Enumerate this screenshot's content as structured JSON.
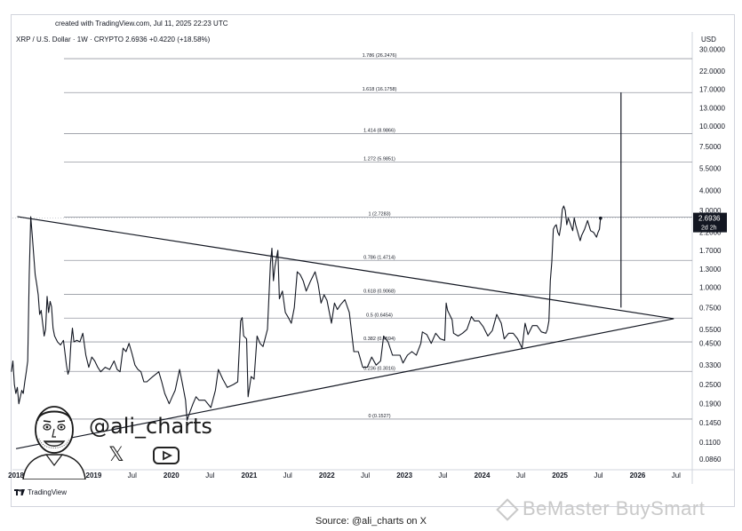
{
  "header": {
    "created": "created with TradingView.com, Jul 11, 2025 22:23 UTC",
    "symbol": "XRP / U.S. Dollar · 1W · CRYPTO  2.6936  +0.4220  (+18.58%)",
    "currency": "USD"
  },
  "price_badge": {
    "value": "2.6936",
    "countdown": "2d 2h"
  },
  "author": {
    "handle": "@ali_charts"
  },
  "footer": {
    "brand": "TradingView",
    "source": "Source: @ali_charts on X"
  },
  "watermark": "BeMaster BuySmart",
  "icons": [
    "tradingview-logo-icon",
    "x-logo-icon",
    "youtube-icon",
    "bemaster-logo-icon"
  ],
  "colors": {
    "line": "#131722",
    "grid": "#b2b5be",
    "badge": "#131722",
    "background": "#ffffff"
  },
  "chart_data": {
    "type": "line",
    "title": "",
    "scale": "log",
    "ylabel": "USD",
    "ylim": [
      0.075,
      33
    ],
    "xlim": [
      "2017-12-15",
      "2026-09-15"
    ],
    "y_ticks": [
      "30.0000",
      "22.0000",
      "17.0000",
      "13.0000",
      "10.0000",
      "7.5000",
      "5.5000",
      "4.0000",
      "3.0000",
      "2.2000",
      "1.7000",
      "1.3000",
      "1.0000",
      "0.7500",
      "0.5500",
      "0.4500",
      "0.3300",
      "0.2500",
      "0.1900",
      "0.1450",
      "0.1100",
      "0.0860"
    ],
    "x_ticks": [
      {
        "label": "2018",
        "date": "2018-01-01"
      },
      {
        "label": "Jul",
        "date": "2018-07-01"
      },
      {
        "label": "2019",
        "date": "2019-01-01"
      },
      {
        "label": "Jul",
        "date": "2019-07-01"
      },
      {
        "label": "2020",
        "date": "2020-01-01"
      },
      {
        "label": "Jul",
        "date": "2020-07-01"
      },
      {
        "label": "2021",
        "date": "2021-01-01"
      },
      {
        "label": "Jul",
        "date": "2021-07-01"
      },
      {
        "label": "2022",
        "date": "2022-01-01"
      },
      {
        "label": "Jul",
        "date": "2022-07-01"
      },
      {
        "label": "2023",
        "date": "2023-01-01"
      },
      {
        "label": "Jul",
        "date": "2023-07-01"
      },
      {
        "label": "2024",
        "date": "2024-01-01"
      },
      {
        "label": "Jul",
        "date": "2024-07-01"
      },
      {
        "label": "2025",
        "date": "2025-01-01"
      },
      {
        "label": "Jul",
        "date": "2025-07-01"
      },
      {
        "label": "2026",
        "date": "2026-01-01"
      },
      {
        "label": "Jul",
        "date": "2026-07-01"
      }
    ],
    "fib_levels": [
      {
        "label": "1.786 (26.2476)",
        "value": 26.2476
      },
      {
        "label": "1.618 (16.1758)",
        "value": 16.1758
      },
      {
        "label": "1.414 (8.9866)",
        "value": 8.9866
      },
      {
        "label": "1.272 (5.9851)",
        "value": 5.9851
      },
      {
        "label": "1 (2.7283)",
        "value": 2.7283
      },
      {
        "label": "0.786 (1.4714)",
        "value": 1.4714
      },
      {
        "label": "0.618 (0.9068)",
        "value": 0.9068
      },
      {
        "label": "0.5 (0.6454)",
        "value": 0.6454
      },
      {
        "label": "0.382 (0.4594)",
        "value": 0.4594
      },
      {
        "label": "0.236 (0.3016)",
        "value": 0.3016
      },
      {
        "label": "0 (0.1527)",
        "value": 0.1527
      }
    ],
    "triangle": {
      "upper": [
        [
          "2018-01-07",
          2.75
        ],
        [
          "2026-06-20",
          0.64
        ]
      ],
      "lower": [
        [
          "2018-01-01",
          0.1
        ],
        [
          "2026-06-20",
          0.64
        ]
      ]
    },
    "projection": {
      "x": "2025-10-15",
      "from": 0.75,
      "to": 16.2
    },
    "series": [
      {
        "values": [
          [
            "2017-12-10",
            0.3
          ],
          [
            "2017-12-17",
            0.35
          ],
          [
            "2017-12-24",
            0.25
          ],
          [
            "2017-12-31",
            0.22
          ],
          [
            "2018-01-07",
            0.24
          ],
          [
            "2018-01-14",
            0.19
          ],
          [
            "2018-01-21",
            0.21
          ],
          [
            "2018-01-28",
            0.23
          ],
          [
            "2018-02-04",
            0.22
          ],
          [
            "2018-02-11",
            0.26
          ],
          [
            "2018-02-18",
            0.3
          ],
          [
            "2018-02-25",
            0.35
          ],
          [
            "2018-03-04",
            1.2
          ],
          [
            "2018-03-11",
            2.75
          ],
          [
            "2018-03-18",
            2.1
          ],
          [
            "2018-03-25",
            1.6
          ],
          [
            "2018-04-01",
            1.2
          ],
          [
            "2018-04-08",
            1.05
          ],
          [
            "2018-04-15",
            0.9
          ],
          [
            "2018-04-22",
            0.68
          ],
          [
            "2018-04-29",
            0.72
          ],
          [
            "2018-05-06",
            0.6
          ],
          [
            "2018-05-13",
            0.5
          ],
          [
            "2018-05-20",
            0.55
          ],
          [
            "2018-05-27",
            0.88
          ],
          [
            "2018-06-03",
            0.7
          ],
          [
            "2018-06-10",
            0.82
          ],
          [
            "2018-06-17",
            0.76
          ],
          [
            "2018-06-24",
            0.56
          ],
          [
            "2018-07-01",
            0.5
          ],
          [
            "2018-07-15",
            0.46
          ],
          [
            "2018-07-29",
            0.44
          ],
          [
            "2018-08-12",
            0.47
          ],
          [
            "2018-08-26",
            0.33
          ],
          [
            "2018-09-02",
            0.29
          ],
          [
            "2018-09-09",
            0.31
          ],
          [
            "2018-09-16",
            0.45
          ],
          [
            "2018-09-23",
            0.56
          ],
          [
            "2018-09-30",
            0.46
          ],
          [
            "2018-10-14",
            0.47
          ],
          [
            "2018-10-28",
            0.46
          ],
          [
            "2018-11-11",
            0.52
          ],
          [
            "2018-11-25",
            0.38
          ],
          [
            "2018-12-09",
            0.32
          ],
          [
            "2018-12-23",
            0.37
          ],
          [
            "2019-01-06",
            0.35
          ],
          [
            "2019-01-20",
            0.32
          ],
          [
            "2019-02-03",
            0.3
          ],
          [
            "2019-02-24",
            0.32
          ],
          [
            "2019-03-17",
            0.31
          ],
          [
            "2019-04-07",
            0.35
          ],
          [
            "2019-04-21",
            0.31
          ],
          [
            "2019-05-05",
            0.3
          ],
          [
            "2019-05-19",
            0.42
          ],
          [
            "2019-06-02",
            0.4
          ],
          [
            "2019-06-16",
            0.45
          ],
          [
            "2019-06-30",
            0.39
          ],
          [
            "2019-07-14",
            0.33
          ],
          [
            "2019-07-28",
            0.31
          ],
          [
            "2019-08-11",
            0.3
          ],
          [
            "2019-08-25",
            0.26
          ],
          [
            "2019-09-08",
            0.26
          ],
          [
            "2019-09-22",
            0.27
          ],
          [
            "2019-10-06",
            0.28
          ],
          [
            "2019-10-20",
            0.29
          ],
          [
            "2019-11-03",
            0.3
          ],
          [
            "2019-11-17",
            0.26
          ],
          [
            "2019-12-01",
            0.22
          ],
          [
            "2019-12-22",
            0.19
          ],
          [
            "2020-01-05",
            0.21
          ],
          [
            "2020-01-19",
            0.23
          ],
          [
            "2020-02-09",
            0.31
          ],
          [
            "2020-02-23",
            0.25
          ],
          [
            "2020-03-08",
            0.2
          ],
          [
            "2020-03-15",
            0.15
          ],
          [
            "2020-03-29",
            0.17
          ],
          [
            "2020-04-12",
            0.19
          ],
          [
            "2020-04-26",
            0.21
          ],
          [
            "2020-05-10",
            0.2
          ],
          [
            "2020-06-07",
            0.2
          ],
          [
            "2020-07-05",
            0.18
          ],
          [
            "2020-07-26",
            0.23
          ],
          [
            "2020-08-09",
            0.31
          ],
          [
            "2020-08-30",
            0.27
          ],
          [
            "2020-09-20",
            0.24
          ],
          [
            "2020-10-18",
            0.25
          ],
          [
            "2020-11-08",
            0.26
          ],
          [
            "2020-11-22",
            0.62
          ],
          [
            "2020-11-29",
            0.65
          ],
          [
            "2020-12-06",
            0.5
          ],
          [
            "2020-12-20",
            0.48
          ],
          [
            "2020-12-27",
            0.21
          ],
          [
            "2021-01-10",
            0.28
          ],
          [
            "2021-01-24",
            0.27
          ],
          [
            "2021-02-07",
            0.5
          ],
          [
            "2021-02-21",
            0.45
          ],
          [
            "2021-03-07",
            0.43
          ],
          [
            "2021-03-28",
            0.55
          ],
          [
            "2021-04-11",
            1.4
          ],
          [
            "2021-04-18",
            1.75
          ],
          [
            "2021-04-25",
            1.1
          ],
          [
            "2021-05-02",
            1.35
          ],
          [
            "2021-05-16",
            1.7
          ],
          [
            "2021-05-23",
            0.85
          ],
          [
            "2021-06-06",
            0.95
          ],
          [
            "2021-06-20",
            0.7
          ],
          [
            "2021-07-04",
            0.65
          ],
          [
            "2021-07-18",
            0.6
          ],
          [
            "2021-08-01",
            0.75
          ],
          [
            "2021-08-15",
            1.25
          ],
          [
            "2021-08-29",
            1.2
          ],
          [
            "2021-09-12",
            1.1
          ],
          [
            "2021-09-26",
            0.95
          ],
          [
            "2021-10-17",
            1.1
          ],
          [
            "2021-11-07",
            1.25
          ],
          [
            "2021-11-21",
            1.05
          ],
          [
            "2021-12-05",
            0.8
          ],
          [
            "2021-12-19",
            0.9
          ],
          [
            "2022-01-02",
            0.83
          ],
          [
            "2022-01-23",
            0.6
          ],
          [
            "2022-02-06",
            0.8
          ],
          [
            "2022-02-20",
            0.73
          ],
          [
            "2022-03-06",
            0.78
          ],
          [
            "2022-03-27",
            0.84
          ],
          [
            "2022-04-17",
            0.7
          ],
          [
            "2022-05-08",
            0.4
          ],
          [
            "2022-05-29",
            0.4
          ],
          [
            "2022-06-19",
            0.32
          ],
          [
            "2022-07-10",
            0.32
          ],
          [
            "2022-07-31",
            0.37
          ],
          [
            "2022-08-21",
            0.33
          ],
          [
            "2022-09-11",
            0.35
          ],
          [
            "2022-09-25",
            0.5
          ],
          [
            "2022-10-16",
            0.46
          ],
          [
            "2022-11-06",
            0.38
          ],
          [
            "2022-11-20",
            0.38
          ],
          [
            "2022-12-11",
            0.38
          ],
          [
            "2022-12-25",
            0.34
          ],
          [
            "2023-01-15",
            0.38
          ],
          [
            "2023-02-05",
            0.4
          ],
          [
            "2023-02-26",
            0.38
          ],
          [
            "2023-03-19",
            0.45
          ],
          [
            "2023-03-26",
            0.53
          ],
          [
            "2023-04-16",
            0.51
          ],
          [
            "2023-05-07",
            0.45
          ],
          [
            "2023-05-28",
            0.52
          ],
          [
            "2023-06-18",
            0.48
          ],
          [
            "2023-07-09",
            0.47
          ],
          [
            "2023-07-16",
            0.8
          ],
          [
            "2023-07-23",
            0.72
          ],
          [
            "2023-08-13",
            0.63
          ],
          [
            "2023-08-20",
            0.52
          ],
          [
            "2023-09-10",
            0.5
          ],
          [
            "2023-10-01",
            0.52
          ],
          [
            "2023-10-22",
            0.55
          ],
          [
            "2023-11-12",
            0.66
          ],
          [
            "2023-11-26",
            0.62
          ],
          [
            "2023-12-17",
            0.62
          ],
          [
            "2024-01-07",
            0.57
          ],
          [
            "2024-01-28",
            0.5
          ],
          [
            "2024-02-18",
            0.54
          ],
          [
            "2024-03-10",
            0.68
          ],
          [
            "2024-03-31",
            0.6
          ],
          [
            "2024-04-14",
            0.48
          ],
          [
            "2024-05-05",
            0.52
          ],
          [
            "2024-05-26",
            0.52
          ],
          [
            "2024-06-16",
            0.48
          ],
          [
            "2024-07-07",
            0.42
          ],
          [
            "2024-07-21",
            0.6
          ],
          [
            "2024-08-04",
            0.51
          ],
          [
            "2024-08-25",
            0.58
          ],
          [
            "2024-09-15",
            0.58
          ],
          [
            "2024-10-06",
            0.53
          ],
          [
            "2024-10-27",
            0.52
          ],
          [
            "2024-11-03",
            0.55
          ],
          [
            "2024-11-10",
            0.62
          ],
          [
            "2024-11-17",
            1.1
          ],
          [
            "2024-11-24",
            1.45
          ],
          [
            "2024-12-01",
            2.3
          ],
          [
            "2024-12-08",
            2.4
          ],
          [
            "2024-12-15",
            2.45
          ],
          [
            "2024-12-22",
            2.2
          ],
          [
            "2024-12-29",
            2.1
          ],
          [
            "2025-01-05",
            2.4
          ],
          [
            "2025-01-12",
            3.05
          ],
          [
            "2025-01-19",
            3.2
          ],
          [
            "2025-01-26",
            3.0
          ],
          [
            "2025-02-02",
            2.45
          ],
          [
            "2025-02-09",
            2.7
          ],
          [
            "2025-02-16",
            2.55
          ],
          [
            "2025-03-02",
            2.25
          ],
          [
            "2025-03-09",
            2.7
          ],
          [
            "2025-03-16",
            2.45
          ],
          [
            "2025-03-30",
            2.1
          ],
          [
            "2025-04-06",
            1.95
          ],
          [
            "2025-04-13",
            2.1
          ],
          [
            "2025-04-27",
            2.3
          ],
          [
            "2025-05-11",
            2.6
          ],
          [
            "2025-05-25",
            2.25
          ],
          [
            "2025-06-08",
            2.2
          ],
          [
            "2025-06-22",
            2.05
          ],
          [
            "2025-06-29",
            2.2
          ],
          [
            "2025-07-06",
            2.3
          ],
          [
            "2025-07-11",
            2.69
          ]
        ]
      }
    ]
  }
}
